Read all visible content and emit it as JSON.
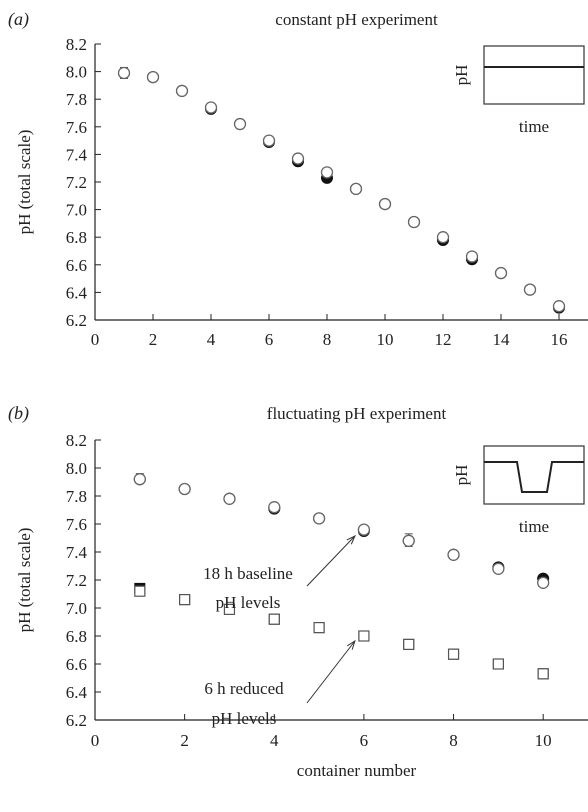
{
  "chart_data": [
    {
      "panel_label": "(a)",
      "type": "scatter",
      "title": "constant pH experiment",
      "xlabel": "",
      "ylabel": "pH (total scale)",
      "xlim": [
        0,
        17
      ],
      "ylim": [
        6.2,
        8.2
      ],
      "xticks": [
        "0",
        "2",
        "4",
        "6",
        "8",
        "10",
        "12",
        "14",
        "16"
      ],
      "yticks": [
        "6.2",
        "6.4",
        "6.6",
        "6.8",
        "7.0",
        "7.2",
        "7.4",
        "7.6",
        "7.8",
        "8.0",
        "8.2"
      ],
      "grid": false,
      "series": [
        {
          "marker": "filled-circle",
          "points": [
            [
              1,
              7.99
            ],
            [
              2,
              7.96
            ],
            [
              3,
              7.86
            ],
            [
              4,
              7.73
            ],
            [
              5,
              7.62
            ],
            [
              6,
              7.49
            ],
            [
              7,
              7.35
            ],
            [
              8,
              7.23
            ],
            [
              9,
              7.15
            ],
            [
              10,
              7.04
            ],
            [
              11,
              6.91
            ],
            [
              12,
              6.78
            ],
            [
              13,
              6.64
            ],
            [
              14,
              6.54
            ],
            [
              15,
              6.42
            ],
            [
              16,
              6.29
            ]
          ]
        },
        {
          "marker": "open-circle",
          "points": [
            [
              1,
              7.99
            ],
            [
              2,
              7.96
            ],
            [
              3,
              7.86
            ],
            [
              4,
              7.74
            ],
            [
              5,
              7.62
            ],
            [
              6,
              7.5
            ],
            [
              7,
              7.37
            ],
            [
              8,
              7.27
            ],
            [
              9,
              7.15
            ],
            [
              10,
              7.04
            ],
            [
              11,
              6.91
            ],
            [
              12,
              6.8
            ],
            [
              13,
              6.66
            ],
            [
              14,
              6.54
            ],
            [
              15,
              6.42
            ],
            [
              16,
              6.3
            ]
          ]
        }
      ],
      "error_bars": [
        [
          1,
          7.95,
          8.03
        ],
        [
          12,
          6.76,
          6.82
        ],
        [
          16,
          6.27,
          6.33
        ]
      ],
      "inset": {
        "ylabel": "pH",
        "xlabel": "time",
        "pattern": "constant"
      },
      "annotations": []
    },
    {
      "panel_label": "(b)",
      "type": "scatter",
      "title": "fluctuating pH experiment",
      "xlabel": "container number",
      "ylabel": "pH (total scale)",
      "xlim": [
        0,
        11
      ],
      "ylim": [
        6.2,
        8.2
      ],
      "xticks": [
        "0",
        "2",
        "4",
        "6",
        "8",
        "10"
      ],
      "yticks": [
        "6.2",
        "6.4",
        "6.6",
        "6.8",
        "7.0",
        "7.2",
        "7.4",
        "7.6",
        "7.8",
        "8.0",
        "8.2"
      ],
      "grid": false,
      "series": [
        {
          "marker": "filled-circle",
          "points": [
            [
              1,
              7.92
            ],
            [
              2,
              7.85
            ],
            [
              3,
              7.78
            ],
            [
              4,
              7.71
            ],
            [
              5,
              7.64
            ],
            [
              6,
              7.55
            ],
            [
              7,
              7.48
            ],
            [
              8,
              7.38
            ],
            [
              9,
              7.29
            ],
            [
              10,
              7.21
            ]
          ]
        },
        {
          "marker": "open-circle",
          "points": [
            [
              1,
              7.92
            ],
            [
              2,
              7.85
            ],
            [
              3,
              7.78
            ],
            [
              4,
              7.72
            ],
            [
              5,
              7.64
            ],
            [
              6,
              7.56
            ],
            [
              7,
              7.48
            ],
            [
              8,
              7.38
            ],
            [
              9,
              7.28
            ],
            [
              10,
              7.18
            ]
          ]
        },
        {
          "marker": "filled-square",
          "points": [
            [
              1,
              7.14
            ],
            [
              2,
              7.06
            ],
            [
              3,
              6.99
            ],
            [
              4,
              6.92
            ],
            [
              5,
              6.86
            ],
            [
              6,
              6.8
            ],
            [
              7,
              6.74
            ],
            [
              8,
              6.67
            ],
            [
              9,
              6.6
            ],
            [
              10,
              6.53
            ]
          ]
        },
        {
          "marker": "open-square",
          "points": [
            [
              1,
              7.12
            ],
            [
              2,
              7.06
            ],
            [
              3,
              6.99
            ],
            [
              4,
              6.92
            ],
            [
              5,
              6.86
            ],
            [
              6,
              6.8
            ],
            [
              7,
              6.74
            ],
            [
              8,
              6.67
            ],
            [
              9,
              6.6
            ],
            [
              10,
              6.53
            ]
          ]
        }
      ],
      "error_bars": [
        [
          1,
          7.89,
          7.96
        ],
        [
          7,
          7.44,
          7.53
        ],
        [
          10,
          7.16,
          7.23
        ]
      ],
      "inset": {
        "ylabel": "pH",
        "xlabel": "time",
        "pattern": "fluctuating"
      },
      "annotations": [
        {
          "lines": [
            "18 h baseline",
            "pH levels"
          ],
          "arrow_to": [
            6,
            7.55
          ]
        },
        {
          "lines": [
            "6 h reduced",
            "pH levels"
          ],
          "arrow_to": [
            6,
            6.8
          ]
        }
      ]
    }
  ]
}
